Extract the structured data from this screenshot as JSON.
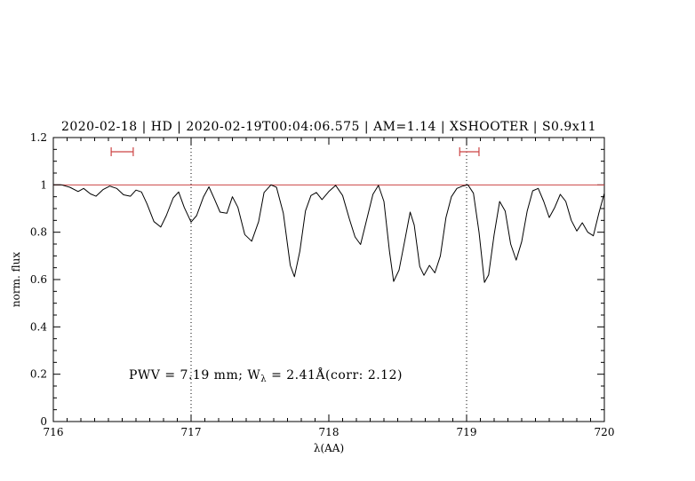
{
  "colors": {
    "title_blue": "#0000cd",
    "annotation_blue": "#0000cd",
    "continuum_red": "#cc4444",
    "marker_red": "#cc4444",
    "spectrum_black": "#000000"
  },
  "chart_data": {
    "type": "line",
    "title": "2020-02-18 | HD | 2020-02-19T00:04:06.575 | AM=1.14 | XSHOOTER | S0.9x11",
    "xlabel": "λ(AA)",
    "ylabel": "norm. flux",
    "annotation": {
      "prefix": "PWV = 7.19 mm; W",
      "subscript": "λ",
      "suffix": " = 2.41Å(corr: 2.12)"
    },
    "xlim": [
      716,
      720
    ],
    "ylim": [
      0,
      1.2
    ],
    "xticks": [
      716,
      717,
      718,
      719,
      720
    ],
    "xtick_labels": [
      "716",
      "717",
      "718",
      "719",
      "720"
    ],
    "yticks": [
      0,
      0.2,
      0.4,
      0.6,
      0.8,
      1,
      1.2
    ],
    "ytick_labels": [
      "0",
      "0.2",
      "0.4",
      "0.6",
      "0.8",
      "1",
      "1.2"
    ],
    "x_minor_step": 0.1,
    "y_minor_step": 0.05,
    "grid": false,
    "dotted_vlines": [
      717,
      719
    ],
    "continuum_y": 1.0,
    "range_markers": [
      {
        "x_center": 716.5,
        "x_half_width": 0.08,
        "y": 1.14
      },
      {
        "x_center": 719.02,
        "x_half_width": 0.07,
        "y": 1.14
      }
    ],
    "series": [
      {
        "name": "normalized telluric spectrum",
        "color": "#000000",
        "points": [
          [
            716.0,
            1.0
          ],
          [
            716.06,
            1.0
          ],
          [
            716.12,
            0.99
          ],
          [
            716.18,
            0.972
          ],
          [
            716.22,
            0.985
          ],
          [
            716.27,
            0.962
          ],
          [
            716.31,
            0.952
          ],
          [
            716.36,
            0.98
          ],
          [
            716.41,
            0.995
          ],
          [
            716.46,
            0.985
          ],
          [
            716.51,
            0.958
          ],
          [
            716.56,
            0.952
          ],
          [
            716.6,
            0.978
          ],
          [
            716.64,
            0.97
          ],
          [
            716.68,
            0.92
          ],
          [
            716.73,
            0.845
          ],
          [
            716.78,
            0.822
          ],
          [
            716.82,
            0.87
          ],
          [
            716.87,
            0.945
          ],
          [
            716.91,
            0.97
          ],
          [
            716.95,
            0.905
          ],
          [
            717.0,
            0.843
          ],
          [
            717.04,
            0.87
          ],
          [
            717.09,
            0.95
          ],
          [
            717.13,
            0.992
          ],
          [
            717.17,
            0.94
          ],
          [
            717.21,
            0.885
          ],
          [
            717.26,
            0.88
          ],
          [
            717.3,
            0.95
          ],
          [
            717.34,
            0.905
          ],
          [
            717.39,
            0.79
          ],
          [
            717.44,
            0.762
          ],
          [
            717.49,
            0.845
          ],
          [
            717.53,
            0.968
          ],
          [
            717.58,
            1.0
          ],
          [
            717.62,
            0.99
          ],
          [
            717.67,
            0.88
          ],
          [
            717.72,
            0.66
          ],
          [
            717.75,
            0.612
          ],
          [
            717.79,
            0.72
          ],
          [
            717.83,
            0.89
          ],
          [
            717.87,
            0.955
          ],
          [
            717.91,
            0.968
          ],
          [
            717.95,
            0.938
          ],
          [
            718.0,
            0.972
          ],
          [
            718.05,
            0.998
          ],
          [
            718.1,
            0.955
          ],
          [
            718.15,
            0.855
          ],
          [
            718.19,
            0.78
          ],
          [
            718.23,
            0.748
          ],
          [
            718.28,
            0.865
          ],
          [
            718.32,
            0.96
          ],
          [
            718.36,
            0.998
          ],
          [
            718.4,
            0.93
          ],
          [
            718.44,
            0.72
          ],
          [
            718.47,
            0.592
          ],
          [
            718.51,
            0.64
          ],
          [
            718.55,
            0.76
          ],
          [
            718.59,
            0.885
          ],
          [
            718.62,
            0.83
          ],
          [
            718.66,
            0.655
          ],
          [
            718.69,
            0.618
          ],
          [
            718.73,
            0.66
          ],
          [
            718.77,
            0.628
          ],
          [
            718.81,
            0.7
          ],
          [
            718.85,
            0.862
          ],
          [
            718.89,
            0.95
          ],
          [
            718.93,
            0.985
          ],
          [
            718.97,
            0.995
          ],
          [
            719.01,
            1.0
          ],
          [
            719.05,
            0.965
          ],
          [
            719.09,
            0.8
          ],
          [
            719.13,
            0.588
          ],
          [
            719.16,
            0.62
          ],
          [
            719.2,
            0.79
          ],
          [
            719.24,
            0.93
          ],
          [
            719.28,
            0.89
          ],
          [
            719.32,
            0.75
          ],
          [
            719.36,
            0.682
          ],
          [
            719.4,
            0.76
          ],
          [
            719.44,
            0.89
          ],
          [
            719.48,
            0.975
          ],
          [
            719.52,
            0.985
          ],
          [
            719.56,
            0.93
          ],
          [
            719.6,
            0.862
          ],
          [
            719.64,
            0.905
          ],
          [
            719.68,
            0.96
          ],
          [
            719.72,
            0.93
          ],
          [
            719.76,
            0.85
          ],
          [
            719.8,
            0.805
          ],
          [
            719.84,
            0.84
          ],
          [
            719.88,
            0.8
          ],
          [
            719.92,
            0.785
          ],
          [
            719.96,
            0.88
          ],
          [
            720.0,
            0.965
          ]
        ]
      }
    ]
  }
}
